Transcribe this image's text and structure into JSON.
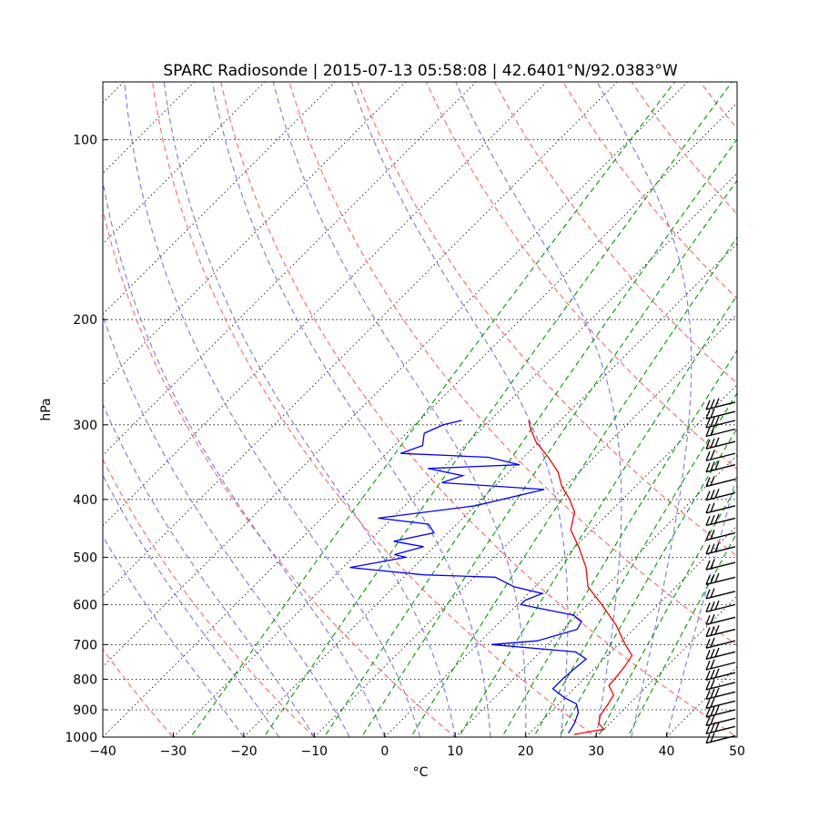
{
  "chart_data": {
    "type": "line",
    "title": "SPARC Radiosonde | 2015-07-13 05:58:08 | 42.6401°N/92.0383°W",
    "xlabel": "°C",
    "ylabel": "hPa",
    "xlim": [
      -40,
      50
    ],
    "ylim": [
      1000,
      80
    ],
    "y_scale": "log",
    "x_ticks": [
      "−40",
      "−30",
      "−20",
      "−10",
      "0",
      "10",
      "20",
      "30",
      "40",
      "50"
    ],
    "y_ticks": [
      "100",
      "200",
      "300",
      "400",
      "500",
      "600",
      "700",
      "800",
      "900",
      "1000"
    ],
    "skew": true,
    "grid": true,
    "series": [
      {
        "type": "temperature",
        "color": "#ff0000",
        "points": [
          [
            990,
            26.5
          ],
          [
            970,
            30.0
          ],
          [
            950,
            28.5
          ],
          [
            920,
            27.5
          ],
          [
            880,
            27.0
          ],
          [
            850,
            26.5
          ],
          [
            820,
            24.5
          ],
          [
            790,
            24.3
          ],
          [
            760,
            24.0
          ],
          [
            730,
            23.5
          ],
          [
            700,
            21.0
          ],
          [
            650,
            17.0
          ],
          [
            600,
            12.0
          ],
          [
            560,
            7.5
          ],
          [
            520,
            4.5
          ],
          [
            480,
            0.5
          ],
          [
            450,
            -3.0
          ],
          [
            420,
            -5.0
          ],
          [
            400,
            -7.5
          ],
          [
            380,
            -10.5
          ],
          [
            360,
            -13.0
          ],
          [
            340,
            -16.5
          ],
          [
            320,
            -20.5
          ],
          [
            305,
            -23.0
          ],
          [
            295,
            -24.5
          ]
        ]
      },
      {
        "type": "dewpoint",
        "color": "#0000ff",
        "points": [
          [
            985,
            25.5
          ],
          [
            950,
            25.0
          ],
          [
            910,
            24.0
          ],
          [
            880,
            22.5
          ],
          [
            860,
            20.0
          ],
          [
            830,
            17.0
          ],
          [
            800,
            17.0
          ],
          [
            770,
            17.2
          ],
          [
            740,
            17.5
          ],
          [
            720,
            15.0
          ],
          [
            700,
            2.0
          ],
          [
            690,
            8.0
          ],
          [
            660,
            12.0
          ],
          [
            640,
            11.5
          ],
          [
            625,
            9.5
          ],
          [
            600,
            0.5
          ],
          [
            590,
            0.5
          ],
          [
            575,
            2.0
          ],
          [
            560,
            -3.0
          ],
          [
            540,
            -7.0
          ],
          [
            535,
            -17.5
          ],
          [
            520,
            -29.0
          ],
          [
            500,
            -22.5
          ],
          [
            495,
            -24.5
          ],
          [
            480,
            -21.5
          ],
          [
            470,
            -26.5
          ],
          [
            455,
            -22.0
          ],
          [
            440,
            -24.0
          ],
          [
            430,
            -32.0
          ],
          [
            410,
            -20.0
          ],
          [
            385,
            -12.5
          ],
          [
            375,
            -28.0
          ],
          [
            365,
            -26.0
          ],
          [
            355,
            -32.0
          ],
          [
            350,
            -19.5
          ],
          [
            340,
            -25.0
          ],
          [
            335,
            -38.0
          ],
          [
            325,
            -36.0
          ],
          [
            310,
            -37.5
          ],
          [
            300,
            -36.0
          ],
          [
            295,
            -34.0
          ]
        ]
      }
    ],
    "reference_lines": {
      "dry_adiabats_color": "#ff6666",
      "moist_adiabats_color": "#7777ee",
      "mixing_ratio_color": "#009900",
      "isotherm_color": "#000000"
    },
    "wind_barbs": {
      "color": "#000000",
      "position": "right",
      "levels": [
        995,
        960,
        930,
        900,
        870,
        840,
        810,
        780,
        750,
        720,
        690,
        660,
        630,
        600,
        570,
        540,
        510,
        480,
        455,
        430,
        410,
        390,
        370,
        350,
        335,
        320,
        305,
        295,
        285,
        275
      ]
    }
  }
}
